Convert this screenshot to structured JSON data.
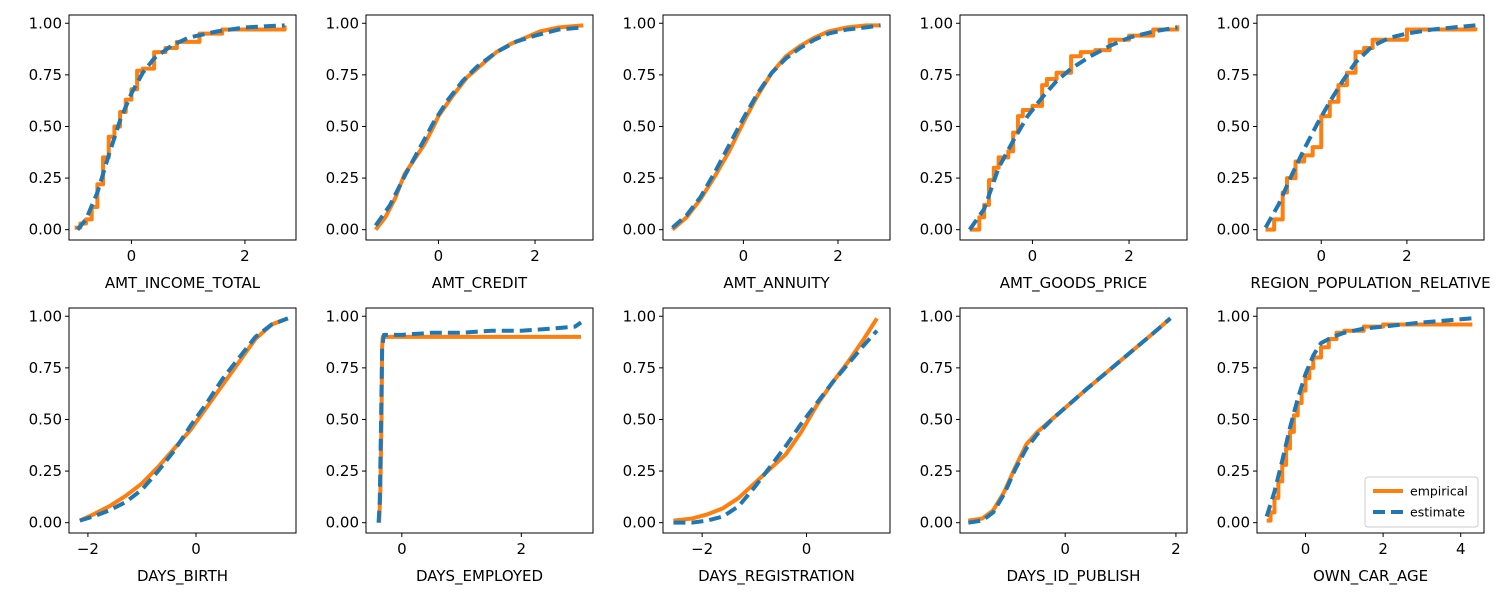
{
  "chart_data": [
    {
      "type": "line",
      "xlabel": "AMT_INCOME_TOTAL",
      "xlim": [
        -1.1,
        2.9
      ],
      "ylim": [
        -0.05,
        1.04
      ],
      "xticks": [
        0,
        2
      ],
      "xtick_labels": [
        "0",
        "2"
      ],
      "yticks": [
        0,
        0.25,
        0.5,
        0.75,
        1.0
      ],
      "ytick_labels": [
        "0.00",
        "0.25",
        "0.50",
        "0.75",
        "1.00"
      ],
      "series": [
        {
          "name": "empirical",
          "color": "#ff7f0e",
          "style": "solid",
          "step": true,
          "x": [
            -1.0,
            -0.9,
            -0.8,
            -0.7,
            -0.6,
            -0.5,
            -0.4,
            -0.3,
            -0.2,
            -0.1,
            0.0,
            0.1,
            0.2,
            0.4,
            0.6,
            0.8,
            1.2,
            1.6,
            2.7
          ],
          "y": [
            0.01,
            0.03,
            0.05,
            0.11,
            0.22,
            0.35,
            0.45,
            0.5,
            0.57,
            0.63,
            0.68,
            0.77,
            0.78,
            0.86,
            0.88,
            0.91,
            0.95,
            0.97,
            0.99
          ]
        },
        {
          "name": "estimate",
          "color": "#1f77b4",
          "style": "dashed",
          "x": [
            -0.95,
            -0.8,
            -0.6,
            -0.4,
            -0.2,
            0.0,
            0.2,
            0.4,
            0.7,
            1.0,
            1.5,
            2.0,
            2.7
          ],
          "y": [
            0.0,
            0.05,
            0.18,
            0.36,
            0.53,
            0.66,
            0.76,
            0.83,
            0.89,
            0.93,
            0.96,
            0.98,
            0.99
          ]
        }
      ]
    },
    {
      "type": "line",
      "xlabel": "AMT_CREDIT",
      "xlim": [
        -1.5,
        3.2
      ],
      "ylim": [
        -0.05,
        1.04
      ],
      "xticks": [
        0,
        2
      ],
      "xtick_labels": [
        "0",
        "2"
      ],
      "yticks": [
        0,
        0.25,
        0.5,
        0.75,
        1.0
      ],
      "ytick_labels": [
        "0.00",
        "0.25",
        "0.50",
        "0.75",
        "1.00"
      ],
      "series": [
        {
          "name": "empirical",
          "color": "#ff7f0e",
          "style": "solid",
          "x": [
            -1.3,
            -1.1,
            -0.9,
            -0.7,
            -0.5,
            -0.3,
            -0.1,
            0.0,
            0.3,
            0.6,
            0.9,
            1.2,
            1.5,
            1.8,
            2.1,
            2.5,
            3.0
          ],
          "y": [
            0.0,
            0.06,
            0.15,
            0.27,
            0.34,
            0.41,
            0.5,
            0.55,
            0.65,
            0.74,
            0.8,
            0.86,
            0.9,
            0.93,
            0.96,
            0.98,
            0.99
          ]
        },
        {
          "name": "estimate",
          "color": "#1f77b4",
          "style": "dashed",
          "x": [
            -1.3,
            -1.0,
            -0.7,
            -0.4,
            -0.1,
            0.2,
            0.5,
            0.8,
            1.2,
            1.6,
            2.0,
            2.5,
            3.0
          ],
          "y": [
            0.02,
            0.12,
            0.26,
            0.39,
            0.52,
            0.63,
            0.72,
            0.79,
            0.86,
            0.91,
            0.94,
            0.97,
            0.98
          ]
        }
      ]
    },
    {
      "type": "line",
      "xlabel": "AMT_ANNUITY",
      "xlim": [
        -1.7,
        3.1
      ],
      "ylim": [
        -0.05,
        1.04
      ],
      "xticks": [
        0,
        2
      ],
      "xtick_labels": [
        "0",
        "2"
      ],
      "yticks": [
        0,
        0.25,
        0.5,
        0.75,
        1.0
      ],
      "ytick_labels": [
        "0.00",
        "0.25",
        "0.50",
        "0.75",
        "1.00"
      ],
      "series": [
        {
          "name": "empirical",
          "color": "#ff7f0e",
          "style": "solid",
          "x": [
            -1.5,
            -1.2,
            -0.9,
            -0.6,
            -0.3,
            0.0,
            0.3,
            0.6,
            0.9,
            1.2,
            1.5,
            1.8,
            2.2,
            2.6,
            2.9
          ],
          "y": [
            0.0,
            0.06,
            0.15,
            0.26,
            0.38,
            0.52,
            0.65,
            0.76,
            0.84,
            0.89,
            0.93,
            0.96,
            0.98,
            0.99,
            0.99
          ]
        },
        {
          "name": "estimate",
          "color": "#1f77b4",
          "style": "dashed",
          "x": [
            -1.5,
            -1.2,
            -0.9,
            -0.6,
            -0.3,
            0.0,
            0.3,
            0.6,
            0.9,
            1.2,
            1.5,
            1.8,
            2.2,
            2.6,
            2.9
          ],
          "y": [
            0.01,
            0.07,
            0.16,
            0.28,
            0.41,
            0.54,
            0.66,
            0.76,
            0.83,
            0.88,
            0.92,
            0.95,
            0.97,
            0.98,
            0.99
          ]
        }
      ]
    },
    {
      "type": "line",
      "xlabel": "AMT_GOODS_PRICE",
      "xlim": [
        -1.5,
        3.2
      ],
      "ylim": [
        -0.05,
        1.04
      ],
      "xticks": [
        0,
        2
      ],
      "xtick_labels": [
        "0",
        "2"
      ],
      "yticks": [
        0,
        0.25,
        0.5,
        0.75,
        1.0
      ],
      "ytick_labels": [
        "0.00",
        "0.25",
        "0.50",
        "0.75",
        "1.00"
      ],
      "series": [
        {
          "name": "empirical",
          "color": "#ff7f0e",
          "style": "solid",
          "step": true,
          "x": [
            -1.3,
            -1.1,
            -1.0,
            -0.9,
            -0.8,
            -0.7,
            -0.5,
            -0.4,
            -0.3,
            -0.2,
            0.0,
            0.2,
            0.3,
            0.5,
            0.8,
            1.0,
            1.3,
            1.6,
            2.0,
            2.5,
            3.0
          ],
          "y": [
            0.0,
            0.06,
            0.12,
            0.24,
            0.3,
            0.35,
            0.38,
            0.47,
            0.55,
            0.58,
            0.6,
            0.7,
            0.73,
            0.76,
            0.84,
            0.86,
            0.87,
            0.92,
            0.94,
            0.97,
            0.99
          ]
        },
        {
          "name": "estimate",
          "color": "#1f77b4",
          "style": "dashed",
          "x": [
            -1.3,
            -1.0,
            -0.7,
            -0.4,
            -0.1,
            0.2,
            0.5,
            0.8,
            1.2,
            1.6,
            2.0,
            2.5,
            3.0
          ],
          "y": [
            0.0,
            0.1,
            0.3,
            0.43,
            0.55,
            0.64,
            0.72,
            0.78,
            0.84,
            0.89,
            0.93,
            0.96,
            0.98
          ]
        }
      ]
    },
    {
      "type": "line",
      "xlabel": "REGION_POPULATION_RELATIVE",
      "xlim": [
        -1.5,
        3.8
      ],
      "ylim": [
        -0.05,
        1.04
      ],
      "xticks": [
        0,
        2
      ],
      "xtick_labels": [
        "0",
        "2"
      ],
      "yticks": [
        0,
        0.25,
        0.5,
        0.75,
        1.0
      ],
      "ytick_labels": [
        "0.00",
        "0.25",
        "0.50",
        "0.75",
        "1.00"
      ],
      "series": [
        {
          "name": "empirical",
          "color": "#ff7f0e",
          "style": "solid",
          "step": true,
          "x": [
            -1.3,
            -1.1,
            -0.9,
            -0.8,
            -0.6,
            -0.4,
            -0.2,
            0.0,
            0.2,
            0.4,
            0.6,
            0.8,
            1.0,
            1.2,
            2.0,
            3.6
          ],
          "y": [
            0.0,
            0.05,
            0.18,
            0.25,
            0.33,
            0.36,
            0.4,
            0.55,
            0.62,
            0.7,
            0.76,
            0.86,
            0.88,
            0.92,
            0.97,
            0.98
          ]
        },
        {
          "name": "estimate",
          "color": "#1f77b4",
          "style": "dashed",
          "x": [
            -1.3,
            -1.0,
            -0.7,
            -0.4,
            -0.1,
            0.2,
            0.5,
            0.8,
            1.2,
            1.6,
            2.0,
            2.6,
            3.6
          ],
          "y": [
            0.01,
            0.12,
            0.26,
            0.39,
            0.51,
            0.62,
            0.72,
            0.81,
            0.89,
            0.93,
            0.95,
            0.97,
            0.99
          ]
        }
      ]
    },
    {
      "type": "line",
      "xlabel": "DAYS_BIRTH",
      "xlim": [
        -2.35,
        1.85
      ],
      "ylim": [
        -0.05,
        1.04
      ],
      "xticks": [
        -2,
        0
      ],
      "xtick_labels": [
        "−2",
        "0"
      ],
      "yticks": [
        0,
        0.25,
        0.5,
        0.75,
        1.0
      ],
      "ytick_labels": [
        "0.00",
        "0.25",
        "0.50",
        "0.75",
        "1.00"
      ],
      "series": [
        {
          "name": "empirical",
          "color": "#ff7f0e",
          "style": "solid",
          "x": [
            -2.15,
            -1.9,
            -1.6,
            -1.3,
            -1.0,
            -0.7,
            -0.4,
            -0.1,
            0.2,
            0.5,
            0.8,
            1.1,
            1.4,
            1.7
          ],
          "y": [
            0.01,
            0.04,
            0.08,
            0.13,
            0.19,
            0.27,
            0.36,
            0.45,
            0.56,
            0.67,
            0.78,
            0.89,
            0.96,
            0.99
          ]
        },
        {
          "name": "estimate",
          "color": "#1f77b4",
          "style": "dashed",
          "x": [
            -2.15,
            -1.9,
            -1.6,
            -1.3,
            -1.0,
            -0.7,
            -0.4,
            -0.1,
            0.2,
            0.5,
            0.8,
            1.1,
            1.4,
            1.7
          ],
          "y": [
            0.01,
            0.03,
            0.06,
            0.1,
            0.16,
            0.25,
            0.35,
            0.47,
            0.58,
            0.7,
            0.8,
            0.9,
            0.96,
            0.99
          ]
        }
      ]
    },
    {
      "type": "line",
      "xlabel": "DAYS_EMPLOYED",
      "xlim": [
        -0.6,
        3.2
      ],
      "ylim": [
        -0.05,
        1.04
      ],
      "xticks": [
        0,
        2
      ],
      "xtick_labels": [
        "0",
        "2"
      ],
      "yticks": [
        0,
        0.25,
        0.5,
        0.75,
        1.0
      ],
      "ytick_labels": [
        "0.00",
        "0.25",
        "0.50",
        "0.75",
        "1.00"
      ],
      "series": [
        {
          "name": "empirical",
          "color": "#ff7f0e",
          "style": "solid",
          "x": [
            -0.38,
            -0.36,
            -0.34,
            -0.33,
            -0.32,
            3.0
          ],
          "y": [
            0.0,
            0.15,
            0.5,
            0.85,
            0.9,
            0.9
          ]
        },
        {
          "name": "estimate",
          "color": "#1f77b4",
          "style": "dashed",
          "x": [
            -0.39,
            -0.37,
            -0.35,
            -0.33,
            -0.3,
            0.0,
            0.5,
            1.0,
            1.5,
            2.0,
            2.5,
            2.9,
            3.0
          ],
          "y": [
            0.0,
            0.1,
            0.45,
            0.85,
            0.91,
            0.91,
            0.92,
            0.92,
            0.93,
            0.93,
            0.94,
            0.95,
            0.97
          ]
        }
      ]
    },
    {
      "type": "line",
      "xlabel": "DAYS_REGISTRATION",
      "xlim": [
        -2.75,
        1.6
      ],
      "ylim": [
        -0.05,
        1.04
      ],
      "xticks": [
        -2,
        0
      ],
      "xtick_labels": [
        "−2",
        "0"
      ],
      "yticks": [
        0,
        0.25,
        0.5,
        0.75,
        1.0
      ],
      "ytick_labels": [
        "0.00",
        "0.25",
        "0.50",
        "0.75",
        "1.00"
      ],
      "series": [
        {
          "name": "empirical",
          "color": "#ff7f0e",
          "style": "solid",
          "x": [
            -2.55,
            -2.2,
            -1.9,
            -1.6,
            -1.3,
            -1.0,
            -0.7,
            -0.4,
            -0.1,
            0.2,
            0.5,
            0.8,
            1.1,
            1.35
          ],
          "y": [
            0.01,
            0.02,
            0.04,
            0.07,
            0.12,
            0.19,
            0.26,
            0.33,
            0.44,
            0.57,
            0.68,
            0.78,
            0.89,
            0.99
          ]
        },
        {
          "name": "estimate",
          "color": "#1f77b4",
          "style": "dashed",
          "x": [
            -2.55,
            -2.2,
            -1.9,
            -1.6,
            -1.3,
            -1.0,
            -0.7,
            -0.4,
            -0.1,
            0.2,
            0.5,
            0.8,
            1.1,
            1.35
          ],
          "y": [
            0.0,
            0.0,
            0.01,
            0.03,
            0.08,
            0.17,
            0.27,
            0.37,
            0.48,
            0.58,
            0.68,
            0.77,
            0.86,
            0.93
          ]
        }
      ]
    },
    {
      "type": "line",
      "xlabel": "DAYS_ID_PUBLISH",
      "xlim": [
        -1.9,
        2.2
      ],
      "ylim": [
        -0.05,
        1.04
      ],
      "xticks": [
        0,
        2
      ],
      "xtick_labels": [
        "0",
        "2"
      ],
      "yticks": [
        0,
        0.25,
        0.5,
        0.75,
        1.0
      ],
      "ytick_labels": [
        "0.00",
        "0.25",
        "0.50",
        "0.75",
        "1.00"
      ],
      "series": [
        {
          "name": "empirical",
          "color": "#ff7f0e",
          "style": "solid",
          "x": [
            -1.75,
            -1.5,
            -1.3,
            -1.1,
            -0.9,
            -0.7,
            -0.5,
            -0.2,
            0.1,
            0.4,
            0.8,
            1.2,
            1.6,
            1.9
          ],
          "y": [
            0.01,
            0.02,
            0.06,
            0.15,
            0.27,
            0.38,
            0.44,
            0.51,
            0.58,
            0.65,
            0.74,
            0.83,
            0.92,
            0.99
          ]
        },
        {
          "name": "estimate",
          "color": "#1f77b4",
          "style": "dashed",
          "x": [
            -1.75,
            -1.5,
            -1.3,
            -1.1,
            -0.9,
            -0.7,
            -0.5,
            -0.2,
            0.1,
            0.4,
            0.8,
            1.2,
            1.6,
            1.9
          ],
          "y": [
            0.0,
            0.01,
            0.05,
            0.14,
            0.26,
            0.36,
            0.43,
            0.51,
            0.58,
            0.65,
            0.74,
            0.83,
            0.92,
            0.99
          ]
        }
      ]
    },
    {
      "type": "line",
      "xlabel": "OWN_CAR_AGE",
      "xlim": [
        -1.25,
        4.6
      ],
      "ylim": [
        -0.05,
        1.04
      ],
      "xticks": [
        0,
        2,
        4
      ],
      "xtick_labels": [
        "0",
        "2",
        "4"
      ],
      "yticks": [
        0,
        0.25,
        0.5,
        0.75,
        1.0
      ],
      "ytick_labels": [
        "0.00",
        "0.25",
        "0.50",
        "0.75",
        "1.00"
      ],
      "legend": {
        "position": "lower right",
        "entries": [
          "empirical",
          "estimate"
        ]
      },
      "series": [
        {
          "name": "empirical",
          "color": "#ff7f0e",
          "style": "solid",
          "step": true,
          "x": [
            -1.0,
            -0.9,
            -0.8,
            -0.7,
            -0.6,
            -0.5,
            -0.4,
            -0.3,
            -0.2,
            -0.1,
            0.0,
            0.1,
            0.2,
            0.4,
            0.6,
            0.8,
            1.0,
            1.5,
            2.0,
            3.0,
            4.3
          ],
          "y": [
            0.01,
            0.05,
            0.12,
            0.2,
            0.28,
            0.36,
            0.44,
            0.52,
            0.58,
            0.64,
            0.7,
            0.75,
            0.8,
            0.85,
            0.89,
            0.92,
            0.93,
            0.95,
            0.96,
            0.96,
            0.96
          ]
        },
        {
          "name": "estimate",
          "color": "#1f77b4",
          "style": "dashed",
          "x": [
            -1.0,
            -0.8,
            -0.6,
            -0.4,
            -0.2,
            0.0,
            0.2,
            0.4,
            0.7,
            1.0,
            1.5,
            2.0,
            3.0,
            4.3
          ],
          "y": [
            0.03,
            0.15,
            0.3,
            0.46,
            0.6,
            0.72,
            0.81,
            0.87,
            0.9,
            0.92,
            0.94,
            0.95,
            0.97,
            0.99
          ]
        }
      ]
    }
  ]
}
